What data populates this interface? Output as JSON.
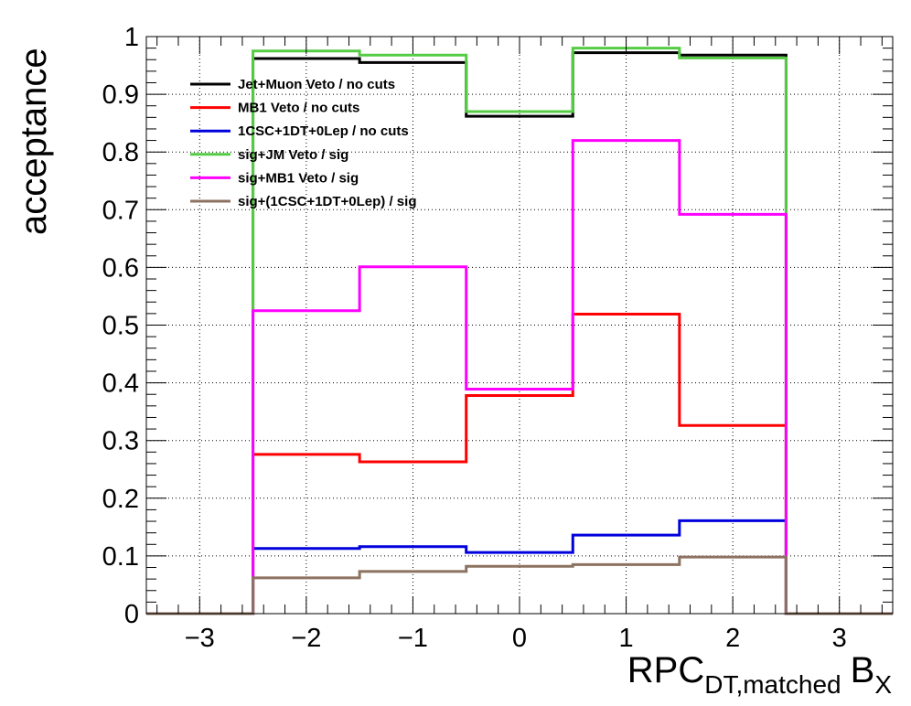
{
  "chart_data": {
    "type": "line",
    "style": "step-histogram",
    "bin_edges": [
      -3.5,
      -2.5,
      -1.5,
      -0.5,
      0.5,
      1.5,
      2.5,
      3.5
    ],
    "xlim": [
      -3.5,
      3.5
    ],
    "ylim": [
      0,
      1
    ],
    "x_ticks": [
      -3,
      -2,
      -1,
      0,
      1,
      2,
      3
    ],
    "y_ticks": [
      0,
      0.1,
      0.2,
      0.3,
      0.4,
      0.5,
      0.6,
      0.7,
      0.8,
      0.9,
      1
    ],
    "x_tick_labels": [
      "−3",
      "−2",
      "−1",
      "0",
      "1",
      "2",
      "3"
    ],
    "y_tick_labels": [
      "0",
      "0.1",
      "0.2",
      "0.3",
      "0.4",
      "0.5",
      "0.6",
      "0.7",
      "0.8",
      "0.9",
      "1"
    ],
    "xlabel": {
      "main": "RPC",
      "sub": "DT,matched",
      "main2": "B",
      "sub2": "X"
    },
    "ylabel": "acceptance",
    "grid": true,
    "legend_position": "top-left",
    "series": [
      {
        "name": "Jet+Muon Veto / no cuts",
        "color": "#000000",
        "values": [
          0,
          0.962,
          0.955,
          0.862,
          0.972,
          0.968,
          0
        ]
      },
      {
        "name": "MB1 Veto / no cuts",
        "color": "#ff0000",
        "values": [
          0,
          0.276,
          0.263,
          0.378,
          0.519,
          0.326,
          0
        ]
      },
      {
        "name": "1CSC+1DT+0Lep / no cuts",
        "color": "#0000dd",
        "values": [
          0,
          0.113,
          0.116,
          0.106,
          0.136,
          0.161,
          0
        ]
      },
      {
        "name": "sig+JM Veto / sig",
        "color": "#55cc44",
        "values": [
          0,
          0.975,
          0.968,
          0.87,
          0.98,
          0.963,
          0
        ]
      },
      {
        "name": "sig+MB1 Veto / sig",
        "color": "#ff00ff",
        "values": [
          0,
          0.525,
          0.601,
          0.389,
          0.82,
          0.692,
          0
        ]
      },
      {
        "name": "sig+(1CSC+1DT+0Lep) / sig",
        "color": "#8c7261",
        "values": [
          0,
          0.062,
          0.073,
          0.082,
          0.085,
          0.098,
          0
        ]
      }
    ]
  }
}
